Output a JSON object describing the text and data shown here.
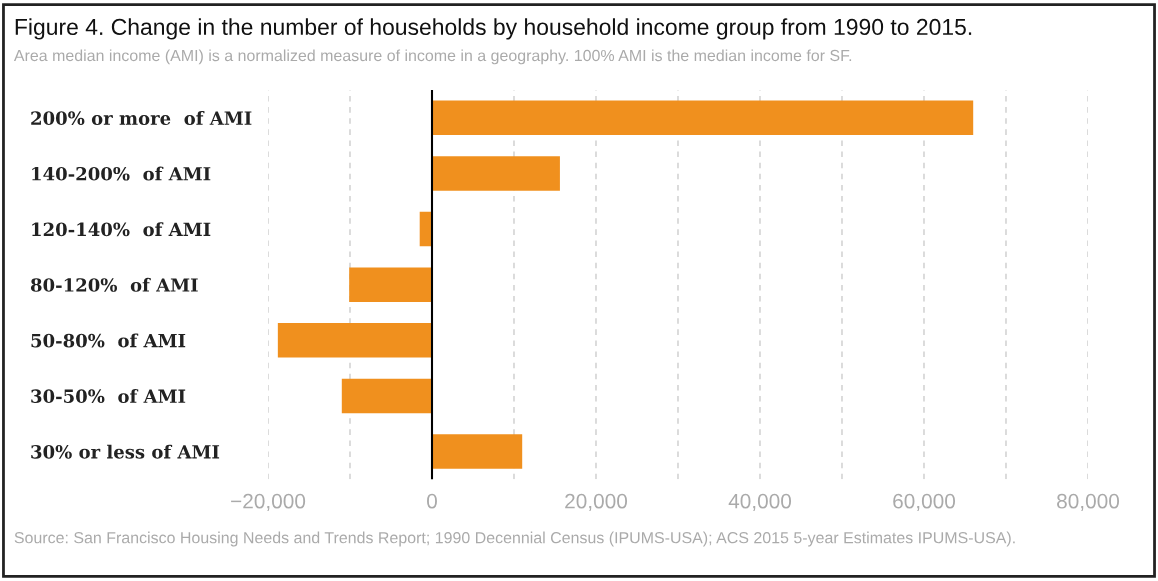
{
  "chart_data": {
    "type": "bar",
    "orientation": "horizontal",
    "title": "Figure 4. Change in the number of households by household income group from 1990 to 2015.",
    "subtitle": "Area median income (AMI) is a normalized measure of income in a geography. 100% AMI is the median income for SF.",
    "categories": [
      "200% or more  of AMI",
      "140-200%  of AMI",
      "120-140%  of AMI",
      "80-120%  of AMI",
      "50-80%  of AMI",
      "30-50%  of AMI",
      "30% or less of AMI"
    ],
    "values": [
      66000,
      15600,
      -1500,
      -10100,
      -18800,
      -11000,
      11000
    ],
    "color": "#f0901e",
    "xlim": [
      -20000,
      80000
    ],
    "xticks": [
      {
        "value": -20000,
        "label": "−20,000"
      },
      {
        "value": -10000,
        "label": null
      },
      0,
      {
        "value": 10000,
        "label": null
      },
      {
        "value": 20000,
        "label": "20,000"
      },
      {
        "value": 30000,
        "label": null
      },
      {
        "value": 40000,
        "label": "40,000"
      },
      {
        "value": 50000,
        "label": null
      },
      {
        "value": 60000,
        "label": "60,000"
      },
      {
        "value": 70000,
        "label": null
      },
      {
        "value": 80000,
        "label": "80,000"
      }
    ],
    "grid": "x",
    "ref_lines": [
      {
        "axis": "x",
        "value": 0,
        "label": null,
        "color": "#000000"
      }
    ],
    "annotations": [
      "Source: San Francisco Housing Needs and Trends Report; 1990 Decennial Census (IPUMS-USA); ACS 2015 5-year Estimates IPUMS-USA)."
    ]
  }
}
